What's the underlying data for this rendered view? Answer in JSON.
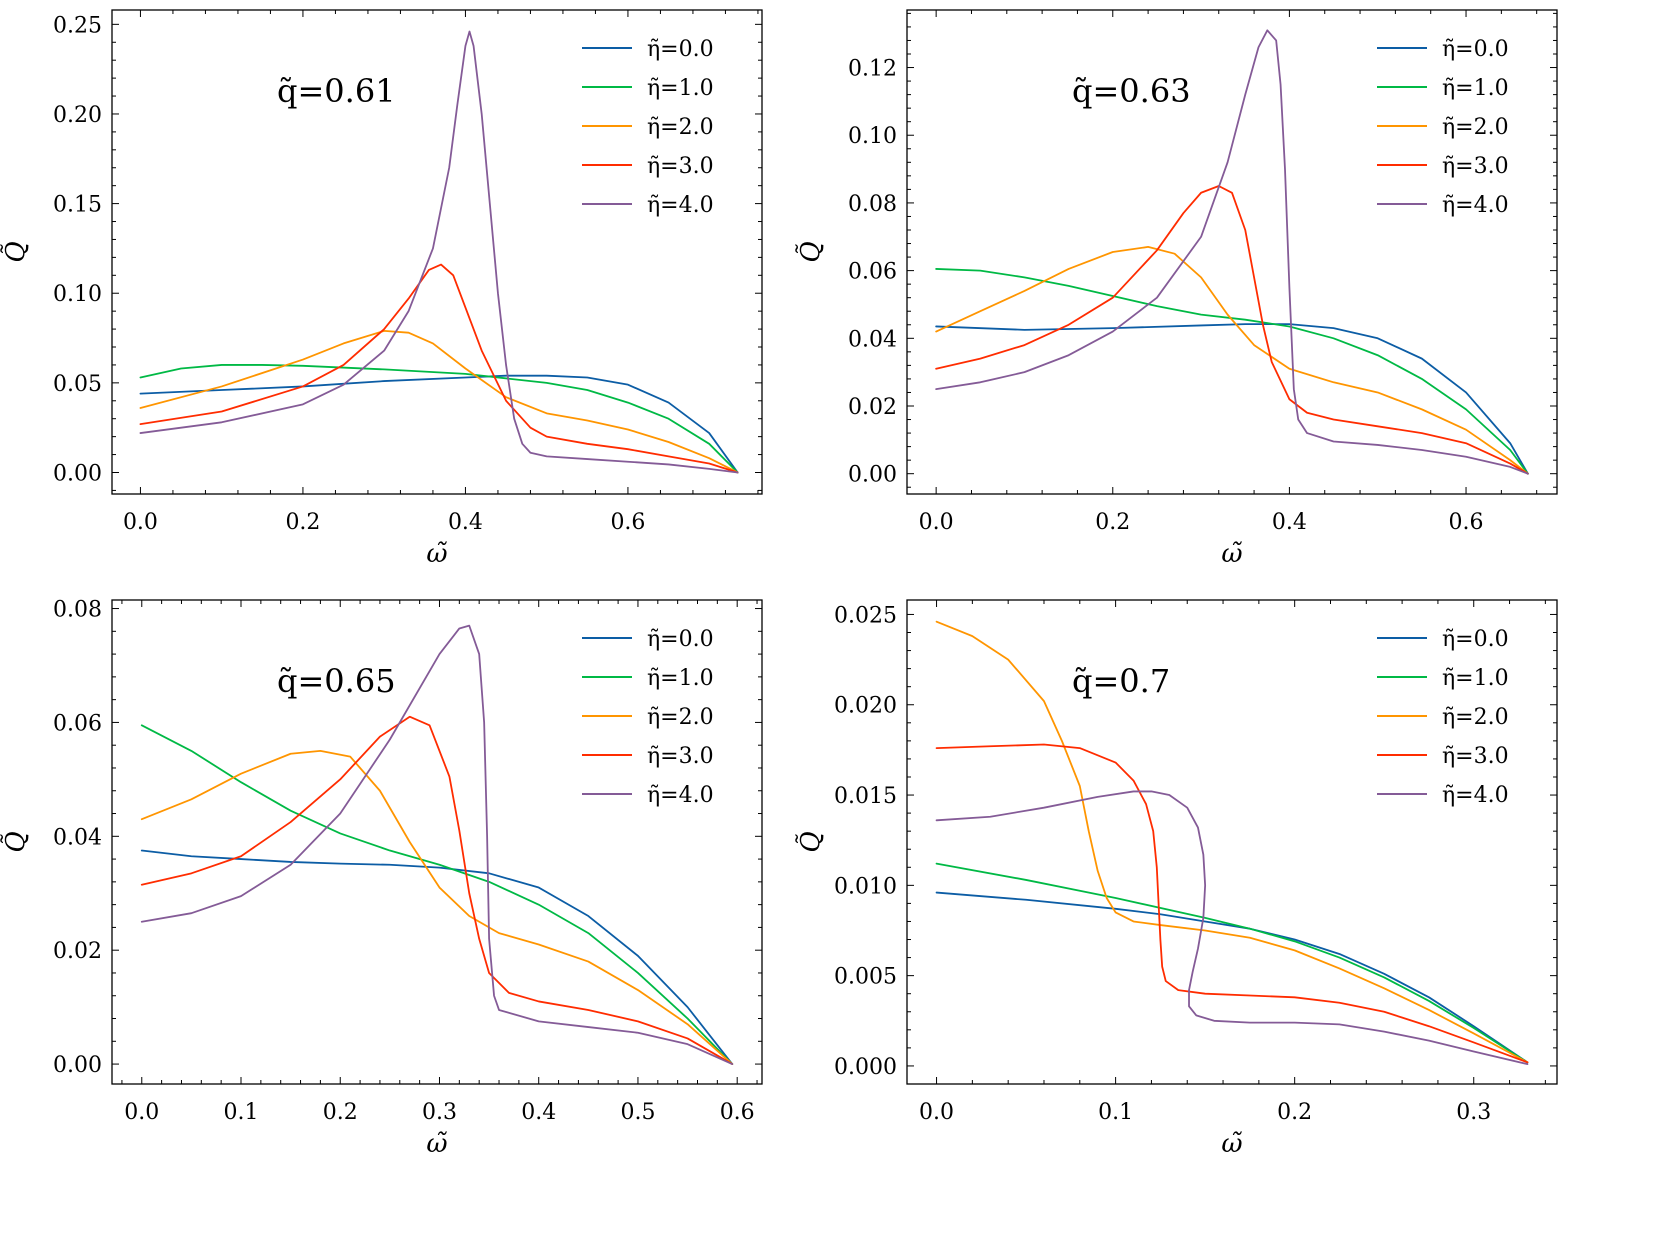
{
  "figure": {
    "legend_labels": [
      "η̃=0.0",
      "η̃=1.0",
      "η̃=2.0",
      "η̃=3.0",
      "η̃=4.0"
    ],
    "series_colors": [
      "#0C5DA5",
      "#00B945",
      "#FF9500",
      "#FF2C00",
      "#845B97"
    ]
  },
  "chart_data": [
    {
      "type": "line",
      "title": "q̃=0.61",
      "xlabel": "ω̃",
      "ylabel": "Q̃",
      "xlim": [
        -0.035,
        0.765
      ],
      "ylim": [
        -0.012,
        0.258
      ],
      "xticks": [
        0.0,
        0.2,
        0.4,
        0.6
      ],
      "xtick_labels": [
        "0.0",
        "0.2",
        "0.4",
        "0.6"
      ],
      "yticks": [
        0.0,
        0.05,
        0.1,
        0.15,
        0.2,
        0.25
      ],
      "ytick_labels": [
        "0.00",
        "0.05",
        "0.10",
        "0.15",
        "0.20",
        "0.25"
      ],
      "legend_position": "top-right",
      "series": [
        {
          "name": "η̃=0.0",
          "x": [
            0,
            0.1,
            0.2,
            0.3,
            0.4,
            0.45,
            0.5,
            0.55,
            0.6,
            0.65,
            0.7,
            0.735
          ],
          "y": [
            0.044,
            0.046,
            0.048,
            0.051,
            0.053,
            0.054,
            0.054,
            0.053,
            0.049,
            0.039,
            0.022,
            0.0
          ]
        },
        {
          "name": "η̃=1.0",
          "x": [
            0,
            0.05,
            0.1,
            0.15,
            0.2,
            0.3,
            0.4,
            0.5,
            0.55,
            0.6,
            0.65,
            0.7,
            0.735
          ],
          "y": [
            0.053,
            0.058,
            0.06,
            0.06,
            0.0595,
            0.0575,
            0.055,
            0.05,
            0.046,
            0.039,
            0.03,
            0.016,
            0.0
          ]
        },
        {
          "name": "η̃=2.0",
          "x": [
            0,
            0.1,
            0.2,
            0.25,
            0.3,
            0.33,
            0.36,
            0.4,
            0.45,
            0.5,
            0.55,
            0.6,
            0.65,
            0.7,
            0.735
          ],
          "y": [
            0.036,
            0.048,
            0.063,
            0.072,
            0.079,
            0.078,
            0.072,
            0.058,
            0.042,
            0.033,
            0.029,
            0.024,
            0.017,
            0.008,
            0.0
          ]
        },
        {
          "name": "η̃=3.0",
          "x": [
            0,
            0.1,
            0.2,
            0.25,
            0.3,
            0.33,
            0.355,
            0.37,
            0.385,
            0.4,
            0.42,
            0.45,
            0.48,
            0.5,
            0.55,
            0.6,
            0.65,
            0.7,
            0.735
          ],
          "y": [
            0.027,
            0.034,
            0.048,
            0.06,
            0.08,
            0.097,
            0.113,
            0.116,
            0.11,
            0.092,
            0.068,
            0.04,
            0.025,
            0.02,
            0.016,
            0.013,
            0.009,
            0.005,
            0.0
          ]
        },
        {
          "name": "η̃=4.0",
          "x": [
            0,
            0.1,
            0.2,
            0.25,
            0.3,
            0.33,
            0.36,
            0.38,
            0.39,
            0.4,
            0.405,
            0.41,
            0.42,
            0.43,
            0.44,
            0.45,
            0.46,
            0.47,
            0.48,
            0.5,
            0.55,
            0.6,
            0.65,
            0.7,
            0.735
          ],
          "y": [
            0.022,
            0.028,
            0.038,
            0.049,
            0.068,
            0.09,
            0.125,
            0.17,
            0.205,
            0.238,
            0.246,
            0.238,
            0.2,
            0.15,
            0.1,
            0.06,
            0.03,
            0.016,
            0.011,
            0.009,
            0.0075,
            0.006,
            0.0045,
            0.002,
            0.0
          ]
        }
      ]
    },
    {
      "type": "line",
      "title": "q̃=0.63",
      "xlabel": "ω̃",
      "ylabel": "Q̃",
      "xlim": [
        -0.033,
        0.703
      ],
      "ylim": [
        -0.006,
        0.137
      ],
      "xticks": [
        0.0,
        0.2,
        0.4,
        0.6
      ],
      "xtick_labels": [
        "0.0",
        "0.2",
        "0.4",
        "0.6"
      ],
      "yticks": [
        0.0,
        0.02,
        0.04,
        0.06,
        0.08,
        0.1,
        0.12
      ],
      "ytick_labels": [
        "0.00",
        "0.02",
        "0.04",
        "0.06",
        "0.08",
        "0.10",
        "0.12"
      ],
      "legend_position": "top-right",
      "series": [
        {
          "name": "η̃=0.0",
          "x": [
            0,
            0.1,
            0.2,
            0.3,
            0.35,
            0.4,
            0.45,
            0.5,
            0.55,
            0.6,
            0.65,
            0.67
          ],
          "y": [
            0.0435,
            0.0425,
            0.043,
            0.0438,
            0.0442,
            0.0442,
            0.043,
            0.04,
            0.034,
            0.024,
            0.009,
            0.0
          ]
        },
        {
          "name": "η̃=1.0",
          "x": [
            0,
            0.05,
            0.1,
            0.15,
            0.2,
            0.25,
            0.3,
            0.35,
            0.4,
            0.45,
            0.5,
            0.55,
            0.6,
            0.65,
            0.67
          ],
          "y": [
            0.0605,
            0.06,
            0.058,
            0.0555,
            0.0525,
            0.0495,
            0.047,
            0.0455,
            0.0435,
            0.04,
            0.035,
            0.028,
            0.019,
            0.007,
            0.0
          ]
        },
        {
          "name": "η̃=2.0",
          "x": [
            0,
            0.05,
            0.1,
            0.15,
            0.2,
            0.24,
            0.27,
            0.3,
            0.33,
            0.36,
            0.4,
            0.45,
            0.5,
            0.55,
            0.6,
            0.65,
            0.67
          ],
          "y": [
            0.042,
            0.048,
            0.054,
            0.0605,
            0.0655,
            0.067,
            0.065,
            0.058,
            0.047,
            0.038,
            0.031,
            0.027,
            0.024,
            0.019,
            0.013,
            0.004,
            0.0
          ]
        },
        {
          "name": "η̃=3.0",
          "x": [
            0,
            0.05,
            0.1,
            0.15,
            0.2,
            0.25,
            0.28,
            0.3,
            0.32,
            0.335,
            0.35,
            0.36,
            0.37,
            0.38,
            0.4,
            0.42,
            0.45,
            0.5,
            0.55,
            0.6,
            0.65,
            0.67
          ],
          "y": [
            0.031,
            0.034,
            0.038,
            0.044,
            0.052,
            0.066,
            0.077,
            0.083,
            0.085,
            0.083,
            0.072,
            0.058,
            0.044,
            0.033,
            0.022,
            0.018,
            0.016,
            0.014,
            0.012,
            0.009,
            0.003,
            0.0
          ]
        },
        {
          "name": "η̃=4.0",
          "x": [
            0,
            0.05,
            0.1,
            0.15,
            0.2,
            0.25,
            0.3,
            0.33,
            0.35,
            0.365,
            0.375,
            0.385,
            0.39,
            0.395,
            0.4,
            0.405,
            0.41,
            0.42,
            0.45,
            0.5,
            0.55,
            0.6,
            0.65,
            0.67
          ],
          "y": [
            0.025,
            0.027,
            0.03,
            0.035,
            0.042,
            0.052,
            0.07,
            0.092,
            0.112,
            0.126,
            0.131,
            0.128,
            0.115,
            0.09,
            0.055,
            0.025,
            0.016,
            0.012,
            0.0095,
            0.0085,
            0.007,
            0.005,
            0.002,
            0.0
          ]
        }
      ]
    },
    {
      "type": "line",
      "title": "q̃=0.65",
      "xlabel": "ω̃",
      "ylabel": "Q̃",
      "xlim": [
        -0.03,
        0.625
      ],
      "ylim": [
        -0.0035,
        0.0815
      ],
      "xticks": [
        0.0,
        0.1,
        0.2,
        0.3,
        0.4,
        0.5,
        0.6
      ],
      "xtick_labels": [
        "0.0",
        "0.1",
        "0.2",
        "0.3",
        "0.4",
        "0.5",
        "0.6"
      ],
      "yticks": [
        0.0,
        0.02,
        0.04,
        0.06,
        0.08
      ],
      "ytick_labels": [
        "0.00",
        "0.02",
        "0.04",
        "0.06",
        "0.08"
      ],
      "legend_position": "top-right",
      "series": [
        {
          "name": "η̃=0.0",
          "x": [
            0,
            0.05,
            0.1,
            0.15,
            0.2,
            0.25,
            0.3,
            0.35,
            0.4,
            0.45,
            0.5,
            0.55,
            0.595
          ],
          "y": [
            0.0375,
            0.0365,
            0.036,
            0.0355,
            0.0352,
            0.035,
            0.0345,
            0.0335,
            0.031,
            0.026,
            0.019,
            0.01,
            0.0
          ]
        },
        {
          "name": "η̃=1.0",
          "x": [
            0,
            0.05,
            0.1,
            0.15,
            0.2,
            0.25,
            0.3,
            0.35,
            0.4,
            0.45,
            0.5,
            0.55,
            0.595
          ],
          "y": [
            0.0595,
            0.055,
            0.0495,
            0.0445,
            0.0405,
            0.0375,
            0.035,
            0.032,
            0.028,
            0.023,
            0.016,
            0.008,
            0.0
          ]
        },
        {
          "name": "η̃=2.0",
          "x": [
            0,
            0.05,
            0.1,
            0.15,
            0.18,
            0.21,
            0.24,
            0.27,
            0.3,
            0.33,
            0.36,
            0.4,
            0.45,
            0.5,
            0.55,
            0.595
          ],
          "y": [
            0.043,
            0.0465,
            0.051,
            0.0545,
            0.055,
            0.054,
            0.048,
            0.039,
            0.031,
            0.026,
            0.023,
            0.021,
            0.018,
            0.013,
            0.007,
            0.0
          ]
        },
        {
          "name": "η̃=3.0",
          "x": [
            0,
            0.05,
            0.1,
            0.15,
            0.2,
            0.24,
            0.27,
            0.29,
            0.31,
            0.32,
            0.33,
            0.34,
            0.35,
            0.37,
            0.4,
            0.45,
            0.5,
            0.55,
            0.595
          ],
          "y": [
            0.0315,
            0.0335,
            0.0365,
            0.0425,
            0.05,
            0.0575,
            0.061,
            0.0595,
            0.0505,
            0.041,
            0.03,
            0.022,
            0.016,
            0.0125,
            0.011,
            0.0095,
            0.0075,
            0.0045,
            0.0
          ]
        },
        {
          "name": "η̃=4.0",
          "x": [
            0,
            0.05,
            0.1,
            0.15,
            0.2,
            0.25,
            0.3,
            0.32,
            0.33,
            0.34,
            0.345,
            0.348,
            0.35,
            0.355,
            0.36,
            0.4,
            0.45,
            0.5,
            0.55,
            0.595
          ],
          "y": [
            0.025,
            0.0265,
            0.0295,
            0.035,
            0.044,
            0.057,
            0.072,
            0.0765,
            0.077,
            0.072,
            0.06,
            0.04,
            0.022,
            0.012,
            0.0095,
            0.0075,
            0.0065,
            0.0055,
            0.0035,
            0.0
          ]
        }
      ]
    },
    {
      "type": "line",
      "title": "q̃=0.7",
      "xlabel": "ω̃",
      "ylabel": "Q̃",
      "xlim": [
        -0.0165,
        0.3465
      ],
      "ylim": [
        -0.001,
        0.0258
      ],
      "xticks": [
        0.0,
        0.1,
        0.2,
        0.3
      ],
      "xtick_labels": [
        "0.0",
        "0.1",
        "0.2",
        "0.3"
      ],
      "yticks": [
        0.0,
        0.005,
        0.01,
        0.015,
        0.02,
        0.025
      ],
      "ytick_labels": [
        "0.000",
        "0.005",
        "0.010",
        "0.015",
        "0.020",
        "0.025"
      ],
      "legend_position": "top-right",
      "series": [
        {
          "name": "η̃=0.0",
          "x": [
            0,
            0.05,
            0.1,
            0.125,
            0.15,
            0.175,
            0.2,
            0.225,
            0.25,
            0.275,
            0.3,
            0.33
          ],
          "y": [
            0.0096,
            0.0092,
            0.0087,
            0.0084,
            0.008,
            0.0076,
            0.007,
            0.0062,
            0.0051,
            0.0038,
            0.0022,
            0.0002
          ]
        },
        {
          "name": "η̃=1.0",
          "x": [
            0,
            0.05,
            0.1,
            0.15,
            0.175,
            0.2,
            0.225,
            0.25,
            0.275,
            0.3,
            0.33
          ],
          "y": [
            0.0112,
            0.0103,
            0.0093,
            0.0082,
            0.0076,
            0.0069,
            0.006,
            0.0049,
            0.0036,
            0.0021,
            0.0002
          ]
        },
        {
          "name": "η̃=2.0",
          "x": [
            0,
            0.02,
            0.04,
            0.06,
            0.07,
            0.08,
            0.085,
            0.09,
            0.095,
            0.1,
            0.11,
            0.125,
            0.15,
            0.175,
            0.2,
            0.225,
            0.25,
            0.275,
            0.3,
            0.33
          ],
          "y": [
            0.0246,
            0.0238,
            0.0225,
            0.0202,
            0.018,
            0.0155,
            0.013,
            0.0108,
            0.0093,
            0.0085,
            0.008,
            0.0078,
            0.0075,
            0.0071,
            0.0064,
            0.0054,
            0.0043,
            0.0031,
            0.0018,
            0.0002
          ]
        },
        {
          "name": "η̃=3.0",
          "x": [
            0,
            0.03,
            0.06,
            0.08,
            0.1,
            0.11,
            0.117,
            0.121,
            0.123,
            0.124,
            0.125,
            0.126,
            0.128,
            0.135,
            0.15,
            0.175,
            0.2,
            0.225,
            0.25,
            0.275,
            0.3,
            0.33
          ],
          "y": [
            0.0176,
            0.0177,
            0.0178,
            0.0176,
            0.0168,
            0.0158,
            0.0145,
            0.013,
            0.011,
            0.009,
            0.007,
            0.0055,
            0.0047,
            0.0042,
            0.004,
            0.0039,
            0.0038,
            0.0035,
            0.003,
            0.0022,
            0.0013,
            0.0002
          ]
        },
        {
          "name": "η̃=4.0",
          "x": [
            0,
            0.03,
            0.06,
            0.09,
            0.11,
            0.12,
            0.13,
            0.14,
            0.146,
            0.149,
            0.15,
            0.149,
            0.146,
            0.143,
            0.141,
            0.141,
            0.145,
            0.155,
            0.175,
            0.2,
            0.225,
            0.25,
            0.275,
            0.3,
            0.33
          ],
          "y": [
            0.0136,
            0.0138,
            0.0143,
            0.0149,
            0.0152,
            0.0152,
            0.015,
            0.0143,
            0.0132,
            0.0117,
            0.01,
            0.0082,
            0.0065,
            0.0052,
            0.0042,
            0.0033,
            0.0028,
            0.0025,
            0.0024,
            0.0024,
            0.0023,
            0.0019,
            0.0014,
            0.0008,
            0.0001
          ]
        }
      ]
    }
  ]
}
